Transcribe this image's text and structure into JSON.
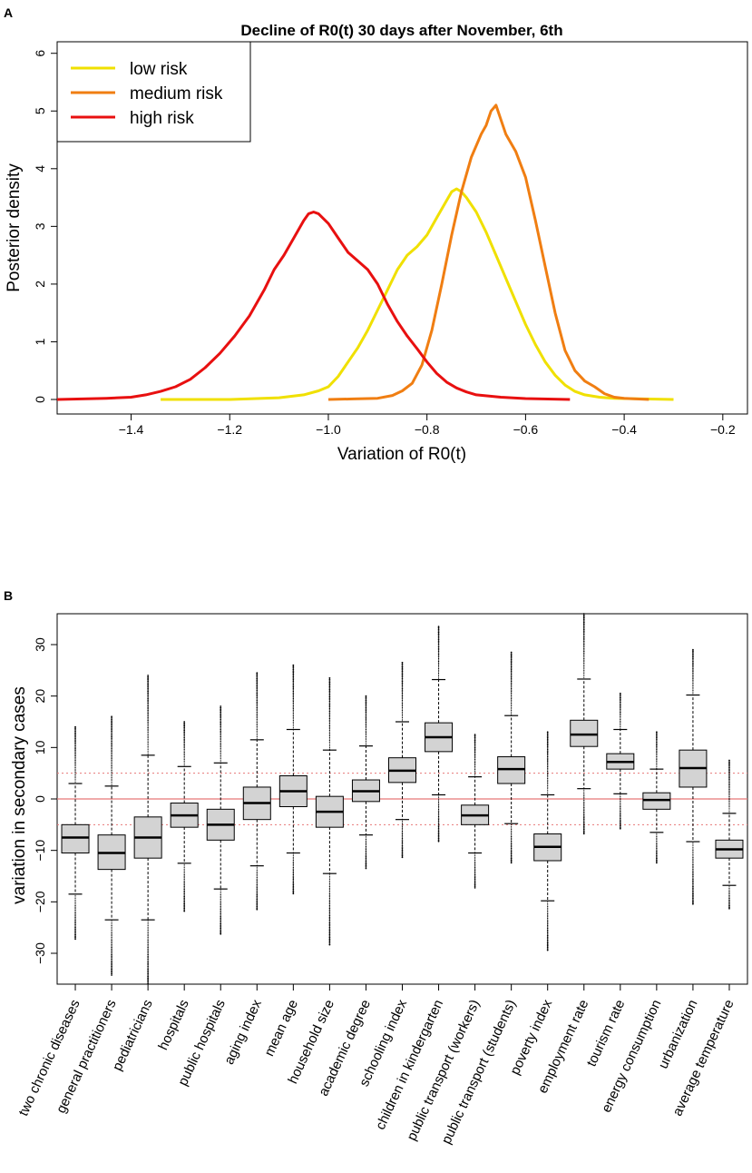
{
  "panel_a": {
    "letter": "A"
  },
  "panel_b": {
    "letter": "B"
  },
  "chart_data": [
    {
      "type": "line",
      "title": "Decline of R0(t) 30 days after November, 6th",
      "xlabel": "Variation of R0(t)",
      "ylabel": "Posterior density",
      "xlim": [
        -1.55,
        -0.15
      ],
      "ylim": [
        0,
        6.2
      ],
      "xticks": [
        -1.4,
        -1.2,
        -1.0,
        -0.8,
        -0.6,
        -0.4,
        -0.2
      ],
      "xtick_labels": [
        "−1.4",
        "−1.2",
        "−1.0",
        "−0.8",
        "−0.6",
        "−0.4",
        "−0.2"
      ],
      "yticks": [
        0,
        1,
        2,
        3,
        4,
        5,
        6
      ],
      "ytick_labels": [
        "0",
        "1",
        "2",
        "3",
        "4",
        "5",
        "6"
      ],
      "legend_position": "top-left",
      "series": [
        {
          "name": "low risk",
          "color": "#f0e000",
          "points": [
            [
              -1.34,
              0
            ],
            [
              -1.2,
              0
            ],
            [
              -1.1,
              0.03
            ],
            [
              -1.05,
              0.08
            ],
            [
              -1.02,
              0.15
            ],
            [
              -1.0,
              0.22
            ],
            [
              -0.98,
              0.4
            ],
            [
              -0.96,
              0.65
            ],
            [
              -0.94,
              0.9
            ],
            [
              -0.92,
              1.2
            ],
            [
              -0.9,
              1.55
            ],
            [
              -0.88,
              1.9
            ],
            [
              -0.86,
              2.25
            ],
            [
              -0.84,
              2.5
            ],
            [
              -0.82,
              2.65
            ],
            [
              -0.8,
              2.85
            ],
            [
              -0.78,
              3.15
            ],
            [
              -0.76,
              3.45
            ],
            [
              -0.75,
              3.6
            ],
            [
              -0.74,
              3.65
            ],
            [
              -0.73,
              3.6
            ],
            [
              -0.72,
              3.5
            ],
            [
              -0.7,
              3.25
            ],
            [
              -0.68,
              2.9
            ],
            [
              -0.66,
              2.5
            ],
            [
              -0.64,
              2.1
            ],
            [
              -0.62,
              1.7
            ],
            [
              -0.6,
              1.3
            ],
            [
              -0.58,
              0.95
            ],
            [
              -0.56,
              0.65
            ],
            [
              -0.54,
              0.42
            ],
            [
              -0.52,
              0.25
            ],
            [
              -0.5,
              0.14
            ],
            [
              -0.48,
              0.08
            ],
            [
              -0.45,
              0.04
            ],
            [
              -0.42,
              0.02
            ],
            [
              -0.3,
              0
            ]
          ]
        },
        {
          "name": "medium risk",
          "color": "#f07e12",
          "points": [
            [
              -1.0,
              0
            ],
            [
              -0.95,
              0.01
            ],
            [
              -0.9,
              0.02
            ],
            [
              -0.87,
              0.07
            ],
            [
              -0.85,
              0.15
            ],
            [
              -0.83,
              0.28
            ],
            [
              -0.81,
              0.6
            ],
            [
              -0.79,
              1.2
            ],
            [
              -0.77,
              2.0
            ],
            [
              -0.75,
              2.85
            ],
            [
              -0.73,
              3.6
            ],
            [
              -0.71,
              4.2
            ],
            [
              -0.69,
              4.6
            ],
            [
              -0.68,
              4.75
            ],
            [
              -0.67,
              5.0
            ],
            [
              -0.66,
              5.1
            ],
            [
              -0.65,
              4.85
            ],
            [
              -0.64,
              4.6
            ],
            [
              -0.62,
              4.3
            ],
            [
              -0.6,
              3.85
            ],
            [
              -0.58,
              3.1
            ],
            [
              -0.56,
              2.3
            ],
            [
              -0.54,
              1.5
            ],
            [
              -0.52,
              0.85
            ],
            [
              -0.5,
              0.5
            ],
            [
              -0.48,
              0.32
            ],
            [
              -0.46,
              0.22
            ],
            [
              -0.44,
              0.1
            ],
            [
              -0.42,
              0.04
            ],
            [
              -0.4,
              0.02
            ],
            [
              -0.35,
              0
            ]
          ]
        },
        {
          "name": "high risk",
          "color": "#e81010",
          "points": [
            [
              -1.55,
              0
            ],
            [
              -1.5,
              0.01
            ],
            [
              -1.45,
              0.02
            ],
            [
              -1.4,
              0.04
            ],
            [
              -1.37,
              0.08
            ],
            [
              -1.34,
              0.14
            ],
            [
              -1.31,
              0.22
            ],
            [
              -1.28,
              0.35
            ],
            [
              -1.25,
              0.55
            ],
            [
              -1.22,
              0.8
            ],
            [
              -1.19,
              1.1
            ],
            [
              -1.16,
              1.45
            ],
            [
              -1.13,
              1.9
            ],
            [
              -1.11,
              2.25
            ],
            [
              -1.09,
              2.5
            ],
            [
              -1.07,
              2.8
            ],
            [
              -1.05,
              3.1
            ],
            [
              -1.04,
              3.22
            ],
            [
              -1.03,
              3.25
            ],
            [
              -1.02,
              3.22
            ],
            [
              -1.0,
              3.05
            ],
            [
              -0.98,
              2.8
            ],
            [
              -0.96,
              2.55
            ],
            [
              -0.94,
              2.4
            ],
            [
              -0.92,
              2.25
            ],
            [
              -0.9,
              2.0
            ],
            [
              -0.88,
              1.65
            ],
            [
              -0.86,
              1.35
            ],
            [
              -0.84,
              1.1
            ],
            [
              -0.82,
              0.88
            ],
            [
              -0.8,
              0.65
            ],
            [
              -0.78,
              0.45
            ],
            [
              -0.76,
              0.3
            ],
            [
              -0.74,
              0.2
            ],
            [
              -0.72,
              0.13
            ],
            [
              -0.7,
              0.08
            ],
            [
              -0.65,
              0.04
            ],
            [
              -0.6,
              0.015
            ],
            [
              -0.51,
              0
            ]
          ]
        }
      ]
    },
    {
      "type": "box",
      "title": "",
      "xlabel": "",
      "ylabel": "variation in secondary cases",
      "ylim": [
        -36,
        36
      ],
      "yticks": [
        -30,
        -20,
        -10,
        0,
        10,
        20,
        30
      ],
      "ytick_labels": [
        "−30",
        "−20",
        "−10",
        "0",
        "10",
        "20",
        "30"
      ],
      "reference_line": 0,
      "reference_band": [
        -5,
        5
      ],
      "box_color": "#d3d3d3",
      "reference_color": "#e87878",
      "categories": [
        "two chronic diseases",
        "general practitioners",
        "pediatricians",
        "hospitals",
        "public hospitals",
        "aging index",
        "mean age",
        "household size",
        "academic degree",
        "schooling index",
        "children in kindergarten",
        "public transport (workers)",
        "public transport (students)",
        "poverty index",
        "employment rate",
        "tourism rate",
        "energy consumption",
        "urbanization",
        "average temperature"
      ],
      "boxes": [
        {
          "whisker_low": -18.5,
          "q1": -10.5,
          "median": -7.5,
          "q3": -5,
          "whisker_high": 3,
          "min": -27.5,
          "max": 14
        },
        {
          "whisker_low": -23.5,
          "q1": -13.7,
          "median": -10.5,
          "q3": -7,
          "whisker_high": 2.5,
          "min": -34.5,
          "max": 16
        },
        {
          "whisker_low": -23.5,
          "q1": -11.5,
          "median": -7.5,
          "q3": -3.5,
          "whisker_high": 8.5,
          "min": -36,
          "max": 24
        },
        {
          "whisker_low": -12.5,
          "q1": -5.5,
          "median": -3.2,
          "q3": -0.8,
          "whisker_high": 6.3,
          "min": -22,
          "max": 15
        },
        {
          "whisker_low": -17.5,
          "q1": -8,
          "median": -5,
          "q3": -2,
          "whisker_high": 7,
          "min": -26.5,
          "max": 18
        },
        {
          "whisker_low": -13,
          "q1": -4,
          "median": -0.8,
          "q3": 2.3,
          "whisker_high": 11.5,
          "min": -21.5,
          "max": 24.5
        },
        {
          "whisker_low": -10.5,
          "q1": -1.5,
          "median": 1.5,
          "q3": 4.5,
          "whisker_high": 13.5,
          "min": -18.5,
          "max": 26
        },
        {
          "whisker_low": -14.5,
          "q1": -5.5,
          "median": -2.5,
          "q3": 0.5,
          "whisker_high": 9.5,
          "min": -28.5,
          "max": 23.5
        },
        {
          "whisker_low": -7,
          "q1": -0.5,
          "median": 1.5,
          "q3": 3.7,
          "whisker_high": 10.3,
          "min": -13.5,
          "max": 20
        },
        {
          "whisker_low": -4,
          "q1": 3.2,
          "median": 5.5,
          "q3": 8,
          "whisker_high": 15,
          "min": -11.5,
          "max": 26.5
        },
        {
          "whisker_low": 0.8,
          "q1": 9.2,
          "median": 12,
          "q3": 14.8,
          "whisker_high": 23.2,
          "min": -8.5,
          "max": 33.5
        },
        {
          "whisker_low": -10.5,
          "q1": -5,
          "median": -3.2,
          "q3": -1.2,
          "whisker_high": 4.3,
          "min": -17.5,
          "max": 12.5
        },
        {
          "whisker_low": -4.8,
          "q1": 3,
          "median": 5.8,
          "q3": 8.2,
          "whisker_high": 16.2,
          "min": -12.5,
          "max": 28.5
        },
        {
          "whisker_low": -19.8,
          "q1": -12,
          "median": -9.3,
          "q3": -6.8,
          "whisker_high": 0.8,
          "min": -29.5,
          "max": 13
        },
        {
          "whisker_low": 2,
          "q1": 10.2,
          "median": 12.5,
          "q3": 15.3,
          "whisker_high": 23.3,
          "min": -7,
          "max": 36
        },
        {
          "whisker_low": 1,
          "q1": 5.8,
          "median": 7.2,
          "q3": 8.8,
          "whisker_high": 13.5,
          "min": -6,
          "max": 20.5
        },
        {
          "whisker_low": -6.5,
          "q1": -2,
          "median": -0.2,
          "q3": 1.2,
          "whisker_high": 5.8,
          "min": -12.5,
          "max": 13
        },
        {
          "whisker_low": -8.3,
          "q1": 2.3,
          "median": 6,
          "q3": 9.5,
          "whisker_high": 20.2,
          "min": -20.5,
          "max": 29
        },
        {
          "whisker_low": -16.8,
          "q1": -11.5,
          "median": -9.8,
          "q3": -8,
          "whisker_high": -2.8,
          "min": -21.5,
          "max": 7.5
        }
      ]
    }
  ]
}
